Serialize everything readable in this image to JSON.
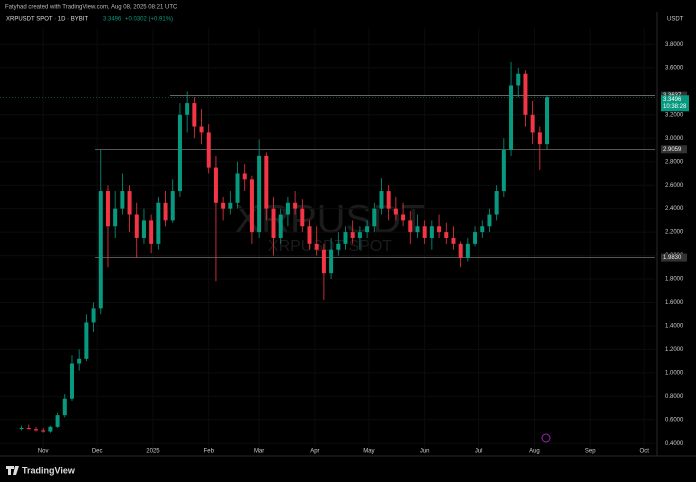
{
  "header": {
    "credit": "Fatyhad created with TradingView.com, Aug 08, 2025 08:21 UTC",
    "symbol": "XRPUSDT SPOT · 1D · BYBIT",
    "price": "3.3496",
    "change": "+0.0302 (+0.91%)",
    "currency": "USDT",
    "logo": "TradingView"
  },
  "chart_data": {
    "type": "candlestick",
    "watermark": "XRPUSDT",
    "watermark_sub": "XRPUSDT SPOT",
    "up_color": "#089981",
    "down_color": "#f23645",
    "xlim": [
      -24,
      340
    ],
    "ylim": [
      0.3,
      3.94
    ],
    "xticks": [
      {
        "value": 0,
        "label": "Nov"
      },
      {
        "value": 30,
        "label": "Dec"
      },
      {
        "value": 61,
        "label": "2025"
      },
      {
        "value": 92,
        "label": "Feb"
      },
      {
        "value": 120,
        "label": "Mar"
      },
      {
        "value": 151,
        "label": "Apr"
      },
      {
        "value": 181,
        "label": "May"
      },
      {
        "value": 212,
        "label": "Jun"
      },
      {
        "value": 242,
        "label": "Jul"
      },
      {
        "value": 273,
        "label": "Aug"
      },
      {
        "value": 304,
        "label": "Sep"
      },
      {
        "value": 334,
        "label": "Oct"
      }
    ],
    "yticks": [
      {
        "value": 0.4,
        "label": "0.4000"
      },
      {
        "value": 0.6,
        "label": "0.6000"
      },
      {
        "value": 0.8,
        "label": "0.8000"
      },
      {
        "value": 1,
        "label": "1.0000"
      },
      {
        "value": 1.2,
        "label": "1.2000"
      },
      {
        "value": 1.4,
        "label": "1.4000"
      },
      {
        "value": 1.6,
        "label": "1.6000"
      },
      {
        "value": 1.8,
        "label": "1.8000"
      },
      {
        "value": 2,
        "label": "2.0000"
      },
      {
        "value": 2.2,
        "label": "2.2000"
      },
      {
        "value": 2.4,
        "label": "2.4000"
      },
      {
        "value": 2.6,
        "label": "2.6000"
      },
      {
        "value": 2.8,
        "label": "2.8000"
      },
      {
        "value": 3,
        "label": "3.0000"
      },
      {
        "value": 3.2,
        "label": "3.2000"
      },
      {
        "value": 3.6,
        "label": "3.6000"
      },
      {
        "value": 3.8,
        "label": "3.8000"
      }
    ],
    "levels": [
      {
        "value": 3.3637,
        "label": "3.3637"
      },
      {
        "value": 2.9059,
        "label": "2.9059"
      },
      {
        "value": 1.983,
        "label": "1.9830"
      }
    ],
    "last_price": {
      "value": 3.3496,
      "label": "3.3496",
      "countdown": "10:38:28"
    },
    "x": [
      -12,
      -8,
      -4,
      0,
      4,
      8,
      12,
      16,
      20,
      24,
      28,
      32,
      36,
      40,
      44,
      48,
      52,
      56,
      60,
      64,
      68,
      72,
      76,
      80,
      84,
      88,
      92,
      96,
      100,
      104,
      108,
      112,
      116,
      120,
      124,
      128,
      132,
      136,
      140,
      144,
      148,
      152,
      156,
      160,
      164,
      168,
      172,
      176,
      180,
      184,
      188,
      192,
      196,
      200,
      204,
      208,
      212,
      216,
      220,
      224,
      228,
      232,
      236,
      240,
      244,
      248,
      252,
      256,
      260,
      264,
      268,
      272,
      276,
      280
    ],
    "open": [
      0.53,
      0.53,
      0.52,
      0.51,
      0.5,
      0.54,
      0.64,
      0.78,
      1.08,
      1.12,
      1.43,
      1.55,
      2.55,
      2.25,
      2.4,
      2.55,
      2.35,
      2.15,
      2.3,
      2.1,
      2.45,
      2.3,
      2.55,
      3.2,
      3.3,
      3.1,
      3.05,
      2.75,
      2.45,
      2.4,
      2.45,
      2.7,
      2.65,
      2.2,
      2.85,
      2.4,
      2.15,
      2.35,
      2.45,
      2.4,
      2.25,
      2.1,
      2.05,
      1.85,
      2.05,
      2.1,
      2.2,
      2.15,
      2.2,
      2.25,
      2.4,
      2.55,
      2.4,
      2.35,
      2.3,
      2.2,
      2.25,
      2.15,
      2.25,
      2.2,
      2.15,
      2.1,
      1.98,
      2.1,
      2.2,
      2.25,
      2.35,
      2.55,
      2.9,
      3.45,
      3.55,
      3.2,
      3.05,
      2.95
    ],
    "high": [
      0.55,
      0.56,
      0.54,
      0.53,
      0.55,
      0.66,
      0.82,
      1.15,
      1.2,
      1.5,
      1.6,
      2.9,
      2.6,
      2.55,
      2.7,
      2.6,
      2.45,
      2.4,
      2.35,
      2.5,
      2.55,
      2.65,
      3.3,
      3.4,
      3.35,
      3.25,
      3.12,
      2.85,
      2.5,
      2.55,
      2.8,
      2.78,
      2.68,
      2.99,
      2.88,
      2.5,
      2.4,
      2.5,
      2.55,
      2.48,
      2.3,
      2.25,
      2.1,
      2.15,
      2.2,
      2.25,
      2.3,
      2.25,
      2.3,
      2.45,
      2.66,
      2.6,
      2.5,
      2.45,
      2.38,
      2.35,
      2.3,
      2.3,
      2.35,
      2.28,
      2.25,
      2.12,
      2.15,
      2.25,
      2.3,
      2.4,
      2.6,
      3.0,
      3.65,
      3.6,
      3.58,
      3.32,
      3.1,
      3.37
    ],
    "low": [
      0.51,
      0.52,
      0.5,
      0.49,
      0.49,
      0.53,
      0.62,
      0.76,
      1.02,
      1.1,
      1.35,
      1.5,
      1.9,
      2.15,
      2.35,
      2.2,
      1.98,
      2.1,
      2.02,
      2.05,
      2.25,
      2.28,
      2.5,
      3.05,
      3.0,
      2.95,
      2.7,
      1.78,
      2.3,
      2.35,
      2.4,
      2.55,
      2.1,
      2.15,
      2.3,
      2.0,
      2.1,
      2.25,
      2.35,
      2.2,
      2.05,
      2.0,
      1.62,
      1.8,
      2.0,
      2.05,
      2.1,
      2.05,
      2.15,
      2.2,
      2.35,
      2.3,
      2.3,
      2.25,
      2.1,
      2.15,
      2.1,
      2.05,
      2.15,
      2.1,
      2.05,
      1.9,
      1.95,
      2.08,
      2.15,
      2.2,
      2.3,
      2.5,
      2.85,
      3.35,
      3.1,
      2.95,
      2.73,
      2.9
    ],
    "close": [
      0.53,
      0.52,
      0.51,
      0.5,
      0.54,
      0.64,
      0.78,
      1.08,
      1.12,
      1.43,
      1.55,
      2.55,
      2.25,
      2.4,
      2.55,
      2.35,
      2.15,
      2.3,
      2.1,
      2.45,
      2.3,
      2.55,
      3.2,
      3.3,
      3.1,
      3.05,
      2.75,
      2.45,
      2.4,
      2.45,
      2.7,
      2.65,
      2.2,
      2.85,
      2.4,
      2.15,
      2.35,
      2.45,
      2.4,
      2.25,
      2.1,
      2.05,
      1.85,
      2.05,
      2.1,
      2.2,
      2.15,
      2.2,
      2.25,
      2.4,
      2.55,
      2.4,
      2.35,
      2.3,
      2.2,
      2.25,
      2.15,
      2.25,
      2.2,
      2.15,
      2.1,
      1.98,
      2.1,
      2.2,
      2.25,
      2.35,
      2.55,
      2.9,
      3.45,
      3.55,
      3.2,
      3.05,
      2.95,
      3.3496
    ]
  }
}
